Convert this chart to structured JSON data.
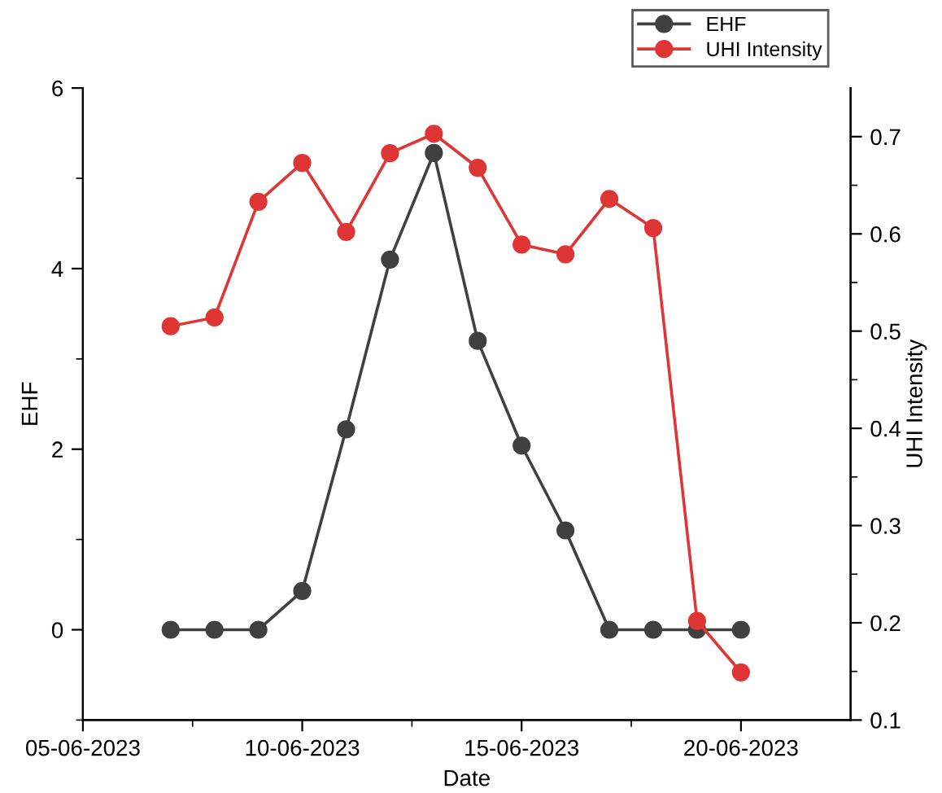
{
  "chart_data": {
    "type": "line",
    "xlabel": "Date",
    "ylabel": "EHF",
    "y2label": "UHI Intensity",
    "x": [
      "2023-06-07",
      "2023-06-08",
      "2023-06-09",
      "2023-06-10",
      "2023-06-11",
      "2023-06-12",
      "2023-06-13",
      "2023-06-14",
      "2023-06-15",
      "2023-06-16",
      "2023-06-17",
      "2023-06-18",
      "2023-06-19",
      "2023-06-20"
    ],
    "series": [
      {
        "name": "EHF",
        "color": "#404040",
        "values": [
          0,
          0,
          0,
          0.43,
          2.22,
          4.1,
          5.28,
          3.2,
          2.04,
          1.1,
          0,
          0,
          0,
          0
        ]
      },
      {
        "name": "UHI Intensity",
        "color": "#e03535",
        "axis": "y2",
        "values": [
          0.505,
          0.514,
          0.633,
          0.673,
          0.602,
          0.683,
          0.703,
          0.668,
          0.589,
          0.579,
          0.636,
          0.606,
          0.202,
          0.149
        ]
      }
    ],
    "xlim": [
      "2023-06-05",
      "2023-06-22T12:00"
    ],
    "xticks": [
      {
        "value": "2023-06-05",
        "label": "05-06-2023"
      },
      {
        "value": "2023-06-10",
        "label": "10-06-2023"
      },
      {
        "value": "2023-06-15",
        "label": "15-06-2023"
      },
      {
        "value": "2023-06-20",
        "label": "20-06-2023"
      }
    ],
    "ylim": [
      -1,
      6
    ],
    "yticks": [
      0,
      2,
      4,
      6
    ],
    "y2lim": [
      0.1,
      0.75
    ],
    "y2ticks": [
      0.1,
      0.2,
      0.3,
      0.4,
      0.5,
      0.6,
      0.7
    ],
    "marker": "circle",
    "line_style": "solid",
    "grid": false,
    "legend": "top right"
  }
}
